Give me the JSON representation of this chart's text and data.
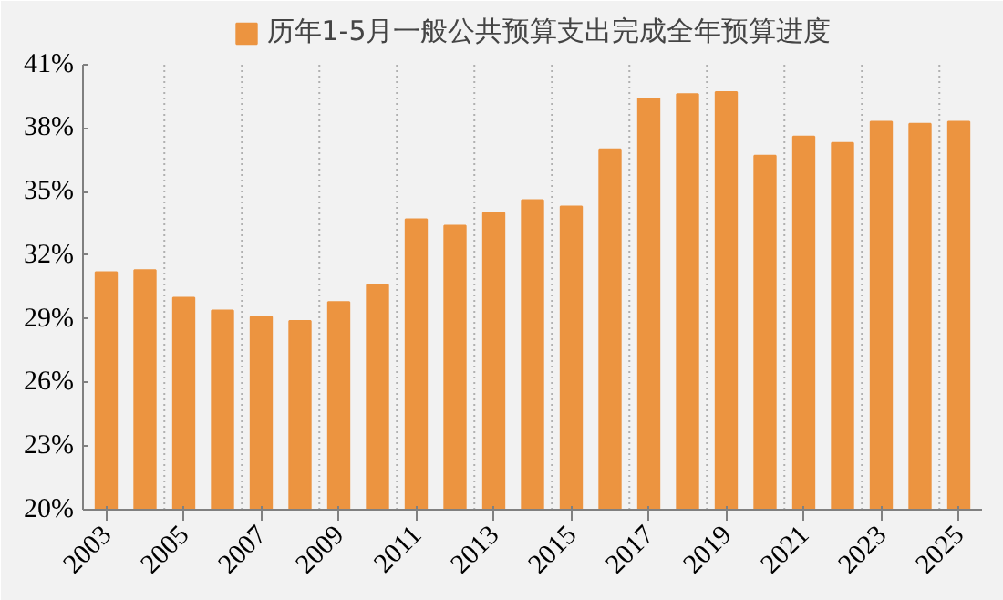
{
  "chart_data": {
    "type": "bar",
    "categories": [
      "2003",
      null,
      "2005",
      null,
      "2007",
      null,
      "2009",
      null,
      "2011",
      null,
      "2013",
      null,
      "2015",
      null,
      "2017",
      null,
      "2019",
      null,
      "2021",
      null,
      "2023",
      null,
      "2025"
    ],
    "series": [
      {
        "name": "历年1-5月一般公共预算支出完成全年预算进度",
        "color": "#ec9440",
        "values": [
          31.2,
          31.3,
          30.0,
          29.4,
          29.1,
          28.9,
          29.8,
          30.6,
          33.7,
          33.4,
          34.0,
          34.6,
          34.3,
          37.0,
          39.4,
          39.6,
          39.7,
          36.7,
          37.6,
          37.3,
          38.3,
          38.2,
          38.3
        ]
      }
    ],
    "ylim": [
      20,
      41
    ],
    "yticks": [
      {
        "value": 20,
        "label": "20%"
      },
      {
        "value": 23,
        "label": "23%"
      },
      {
        "value": 26,
        "label": "26%"
      },
      {
        "value": 29,
        "label": "29%"
      },
      {
        "value": 32,
        "label": "32%"
      },
      {
        "value": 35,
        "label": "35%"
      },
      {
        "value": 38,
        "label": "38%"
      },
      {
        "value": 41,
        "label": "41%"
      }
    ],
    "grid": "x",
    "legend": "top"
  }
}
